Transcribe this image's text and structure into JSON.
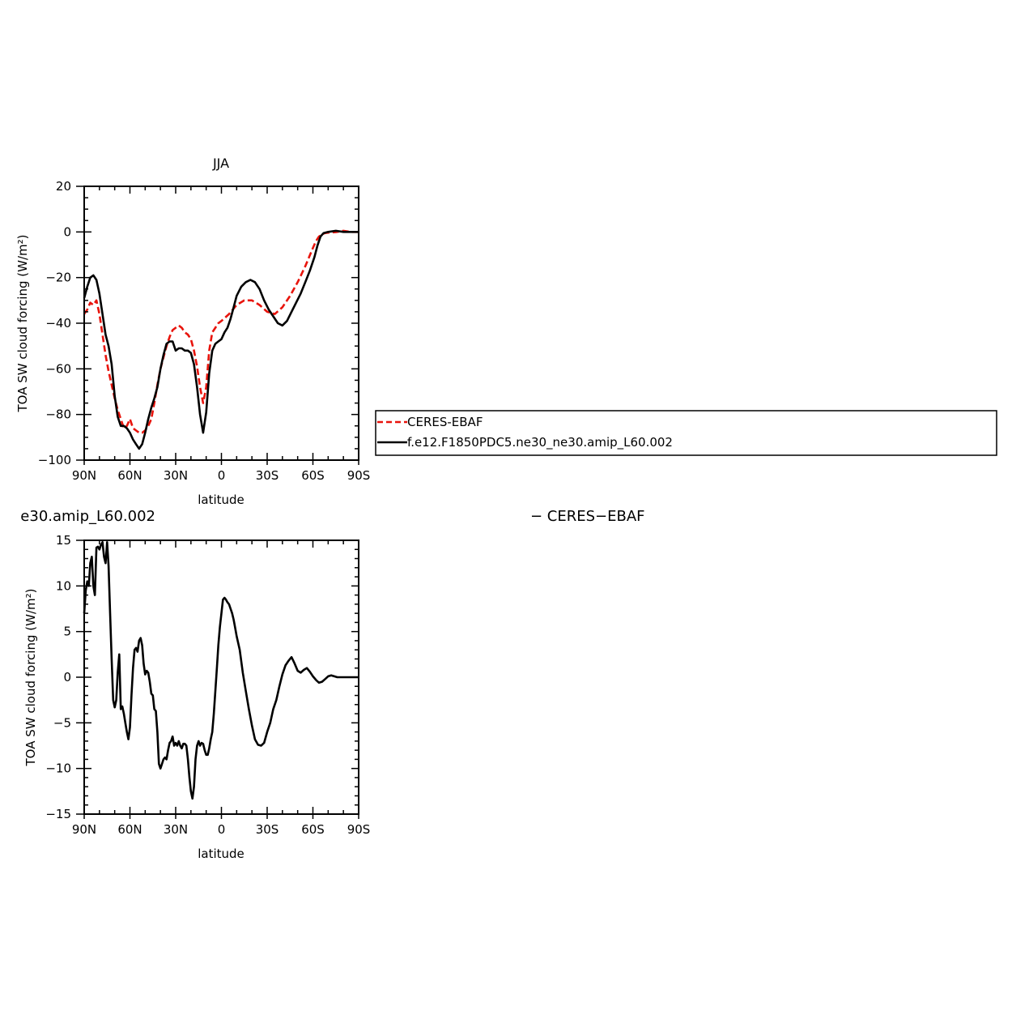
{
  "chart_data": [
    {
      "type": "line",
      "title": "JJA",
      "xlabel": "latitude",
      "ylabel": "TOA SW cloud forcing (W/m²)",
      "xlim": [
        90,
        -90
      ],
      "ylim": [
        -100,
        20
      ],
      "x_ticks": [
        {
          "value": 90,
          "label": "90N"
        },
        {
          "value": 60,
          "label": "60N"
        },
        {
          "value": 30,
          "label": "30N"
        },
        {
          "value": 0,
          "label": "0"
        },
        {
          "value": -30,
          "label": "30S"
        },
        {
          "value": -60,
          "label": "60S"
        },
        {
          "value": -90,
          "label": "90S"
        }
      ],
      "y_ticks": [
        {
          "value": 20,
          "label": "20"
        },
        {
          "value": 0,
          "label": "0"
        },
        {
          "value": -20,
          "label": "−20"
        },
        {
          "value": -40,
          "label": "−40"
        },
        {
          "value": -60,
          "label": "−60"
        },
        {
          "value": -80,
          "label": "−80"
        },
        {
          "value": -100,
          "label": "−100"
        }
      ],
      "series": [
        {
          "name": "CERES-EBAF",
          "color": "#e8140c",
          "dash": true,
          "x": [
            90,
            88,
            86,
            84,
            82,
            80,
            78,
            76,
            74,
            72,
            70,
            68,
            66,
            64,
            62,
            60,
            58,
            56,
            54,
            52,
            50,
            48,
            46,
            44,
            42,
            40,
            38,
            36,
            34,
            32,
            30,
            28,
            26,
            24,
            22,
            20,
            18,
            16,
            14,
            12,
            10,
            8,
            6,
            4,
            2,
            0,
            -5,
            -10,
            -15,
            -20,
            -25,
            -30,
            -35,
            -40,
            -45,
            -50,
            -55,
            -60,
            -62,
            -64,
            -66,
            -68,
            -70,
            -72,
            -75,
            -80,
            -85,
            -90
          ],
          "y": [
            -36,
            -34,
            -31,
            -32,
            -30,
            -36,
            -45,
            -54,
            -61,
            -67,
            -73,
            -78,
            -82,
            -86,
            -85,
            -82,
            -86,
            -87,
            -88,
            -88,
            -87,
            -85,
            -82,
            -75,
            -67,
            -60,
            -55,
            -50,
            -46,
            -43,
            -42,
            -41,
            -42,
            -44,
            -45,
            -47,
            -52,
            -59,
            -68,
            -75,
            -68,
            -52,
            -44,
            -42,
            -40,
            -39,
            -36,
            -32,
            -30,
            -30,
            -32,
            -35,
            -36,
            -33,
            -28,
            -22,
            -15,
            -7,
            -4,
            -2,
            -1,
            -0.5,
            -0.3,
            -0.2,
            -0.1,
            0.5,
            0,
            0
          ]
        },
        {
          "name": "f.e12.F1850PDC5.ne30_ne30.amip_L60.002",
          "color": "#000000",
          "dash": false,
          "x": [
            90,
            88,
            86,
            84,
            82,
            80,
            78,
            76,
            74,
            72,
            70,
            68,
            66,
            64,
            62,
            60,
            58,
            56,
            54,
            52,
            50,
            48,
            46,
            44,
            42,
            40,
            38,
            36,
            34,
            32,
            30,
            28,
            26,
            24,
            22,
            20,
            18,
            16,
            14,
            12,
            10,
            8,
            6,
            4,
            2,
            0,
            -2,
            -4,
            -6,
            -8,
            -10,
            -13,
            -16,
            -19,
            -22,
            -25,
            -28,
            -31,
            -34,
            -37,
            -40,
            -43,
            -46,
            -49,
            -52,
            -55,
            -58,
            -61,
            -63,
            -65,
            -67,
            -70,
            -75,
            -80,
            -85,
            -90
          ],
          "y": [
            -29,
            -24,
            -20,
            -19,
            -21,
            -27,
            -36,
            -45,
            -50,
            -58,
            -72,
            -81,
            -85,
            -85,
            -86,
            -88,
            -91,
            -93,
            -95,
            -93,
            -88,
            -82,
            -77,
            -73,
            -68,
            -60,
            -54,
            -49,
            -48,
            -48,
            -52,
            -51,
            -51,
            -52,
            -52,
            -53,
            -58,
            -68,
            -80,
            -88,
            -79,
            -62,
            -52,
            -49,
            -48,
            -47,
            -44,
            -42,
            -38,
            -33,
            -28,
            -24,
            -22,
            -21,
            -22,
            -25,
            -30,
            -34,
            -37,
            -40,
            -41,
            -39,
            -35,
            -31,
            -27,
            -22,
            -17,
            -11,
            -6,
            -2,
            -0.5,
            0,
            0.5,
            0,
            0,
            0
          ]
        }
      ],
      "legend": "right, boxed"
    },
    {
      "type": "line",
      "title_visible_fragment": "e30.amip_L60.002",
      "title_right_fragment": "− CERES−EBAF",
      "xlabel": "latitude",
      "ylabel": "TOA SW cloud forcing (W/m²)",
      "xlim": [
        90,
        -90
      ],
      "ylim": [
        -15,
        15
      ],
      "x_ticks": [
        {
          "value": 90,
          "label": "90N"
        },
        {
          "value": 60,
          "label": "60N"
        },
        {
          "value": 30,
          "label": "30N"
        },
        {
          "value": 0,
          "label": "0"
        },
        {
          "value": -30,
          "label": "30S"
        },
        {
          "value": -60,
          "label": "60S"
        },
        {
          "value": -90,
          "label": "90S"
        }
      ],
      "y_ticks": [
        {
          "value": 15,
          "label": "15"
        },
        {
          "value": 10,
          "label": "10"
        },
        {
          "value": 5,
          "label": "5"
        },
        {
          "value": 0,
          "label": "0"
        },
        {
          "value": -5,
          "label": "−5"
        },
        {
          "value": -10,
          "label": "−10"
        },
        {
          "value": -15,
          "label": "−15"
        }
      ],
      "series": [
        {
          "color": "#000000",
          "dash": false,
          "x": [
            90,
            89,
            88,
            87,
            86,
            85,
            84,
            83,
            82,
            81,
            80,
            79,
            78,
            77,
            76,
            75,
            74,
            73,
            72,
            71,
            70,
            69,
            68,
            67,
            66,
            65,
            64,
            63,
            62,
            61,
            60,
            59,
            58,
            57,
            56,
            55,
            54,
            53,
            52,
            51,
            50,
            49,
            48,
            47,
            46,
            45,
            44,
            43,
            42,
            41,
            40,
            39,
            38,
            37,
            36,
            35,
            34,
            33,
            32,
            31,
            30,
            29,
            28,
            27,
            26,
            25,
            24,
            23,
            22,
            21,
            20,
            19,
            18,
            17,
            16,
            15,
            14,
            13,
            12,
            11,
            10,
            9,
            8,
            7,
            6,
            5,
            4,
            3,
            2,
            1,
            0,
            -1,
            -2,
            -3,
            -4,
            -5,
            -6,
            -7,
            -8,
            -9,
            -10,
            -12,
            -14,
            -16,
            -18,
            -20,
            -22,
            -24,
            -26,
            -28,
            -30,
            -32,
            -34,
            -36,
            -38,
            -40,
            -42,
            -44,
            -46,
            -48,
            -50,
            -52,
            -54,
            -56,
            -58,
            -60,
            -62,
            -64,
            -66,
            -68,
            -70,
            -72,
            -74,
            -76,
            -78,
            -80,
            -82,
            -84,
            -86,
            -88,
            -90
          ],
          "y": [
            7,
            9.5,
            10.5,
            10,
            12.5,
            13.2,
            10,
            9,
            14.2,
            14.3,
            14,
            14.5,
            14.8,
            13.2,
            12.5,
            14.8,
            12.2,
            7,
            2,
            -2.5,
            -3.3,
            -2.5,
            0.5,
            2.5,
            -3.5,
            -3.2,
            -4,
            -5,
            -6,
            -6.8,
            -5.5,
            -2,
            1,
            3,
            3.2,
            2.8,
            4,
            4.3,
            3.5,
            1.5,
            0.3,
            0.7,
            0.5,
            -0.5,
            -1.8,
            -2,
            -3.5,
            -3.7,
            -6,
            -9.5,
            -10,
            -9.5,
            -9,
            -8.8,
            -9,
            -8,
            -7.2,
            -7,
            -6.5,
            -7.5,
            -7.2,
            -7.5,
            -7,
            -7.5,
            -7.8,
            -7.3,
            -7.3,
            -7.5,
            -9,
            -11,
            -12.5,
            -13.3,
            -12,
            -9,
            -7.5,
            -7,
            -7.5,
            -7.2,
            -7.3,
            -8,
            -8.5,
            -8.5,
            -7.8,
            -6.8,
            -6,
            -4,
            -1.5,
            1,
            3.5,
            5.5,
            7,
            8.5,
            8.7,
            8.5,
            8.2,
            8,
            7.5,
            7,
            6.3,
            5.4,
            4.5,
            3,
            0.5,
            -1.5,
            -3.5,
            -5.3,
            -6.8,
            -7.4,
            -7.5,
            -7.2,
            -6,
            -5,
            -3.5,
            -2.5,
            -1,
            0.3,
            1.3,
            1.8,
            2.2,
            1.5,
            0.7,
            0.5,
            0.8,
            1,
            0.6,
            0.1,
            -0.3,
            -0.6,
            -0.5,
            -0.2,
            0.1,
            0.2,
            0.1,
            0,
            0,
            0,
            0,
            0,
            0,
            0,
            0
          ]
        }
      ]
    }
  ]
}
